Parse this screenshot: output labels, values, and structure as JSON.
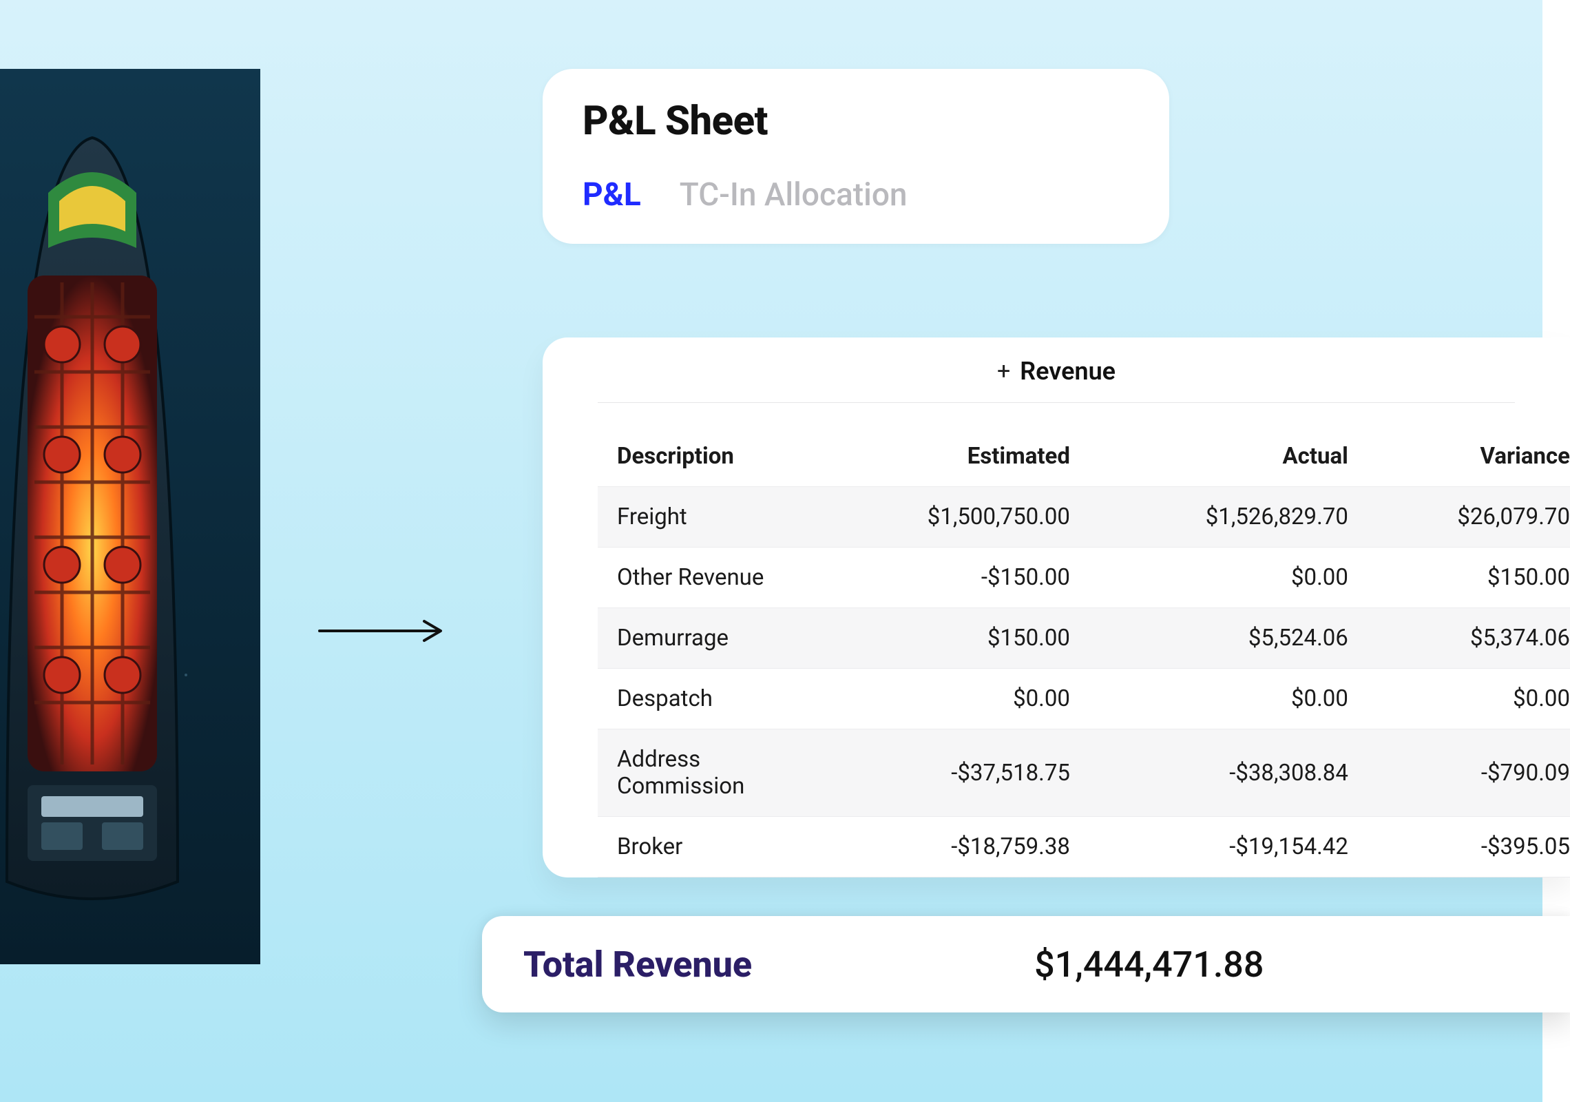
{
  "colors": {
    "page_bg_top": "#d7f2fb",
    "page_bg_bottom": "#aee6f6",
    "card_bg": "#ffffff",
    "title_color": "#111111",
    "tab_active": "#1f2bff",
    "tab_inactive": "#b9b9bd",
    "divider": "#e6e6e8",
    "row_stripe": "#f6f6f7",
    "total_label": "#2b1e66",
    "ship_water": "#0b2b3e"
  },
  "image": {
    "alt": "Aerial view of a cargo ship at sea"
  },
  "header": {
    "title": "P&L Sheet",
    "tabs": [
      {
        "label": "P&L",
        "active": true
      },
      {
        "label": "TC-In Allocation",
        "active": false
      }
    ]
  },
  "table": {
    "section_label": "Revenue",
    "columns": [
      "Description",
      "Estimated",
      "Actual",
      "Variance"
    ],
    "rows": [
      {
        "desc": "Freight",
        "estimated": "$1,500,750.00",
        "actual": "$1,526,829.70",
        "variance": "$26,079.70"
      },
      {
        "desc": "Other Revenue",
        "estimated": "-$150.00",
        "actual": "$0.00",
        "variance": "$150.00"
      },
      {
        "desc": "Demurrage",
        "estimated": "$150.00",
        "actual": "$5,524.06",
        "variance": "$5,374.06"
      },
      {
        "desc": "Despatch",
        "estimated": "$0.00",
        "actual": "$0.00",
        "variance": "$0.00"
      },
      {
        "desc": "Address Commission",
        "estimated": "-$37,518.75",
        "actual": "-$38,308.84",
        "variance": "-$790.09"
      },
      {
        "desc": "Broker",
        "estimated": "-$18,759.38",
        "actual": "-$19,154.42",
        "variance": "-$395.05"
      }
    ]
  },
  "total": {
    "label": "Total Revenue",
    "value": "$1,444,471.88"
  }
}
